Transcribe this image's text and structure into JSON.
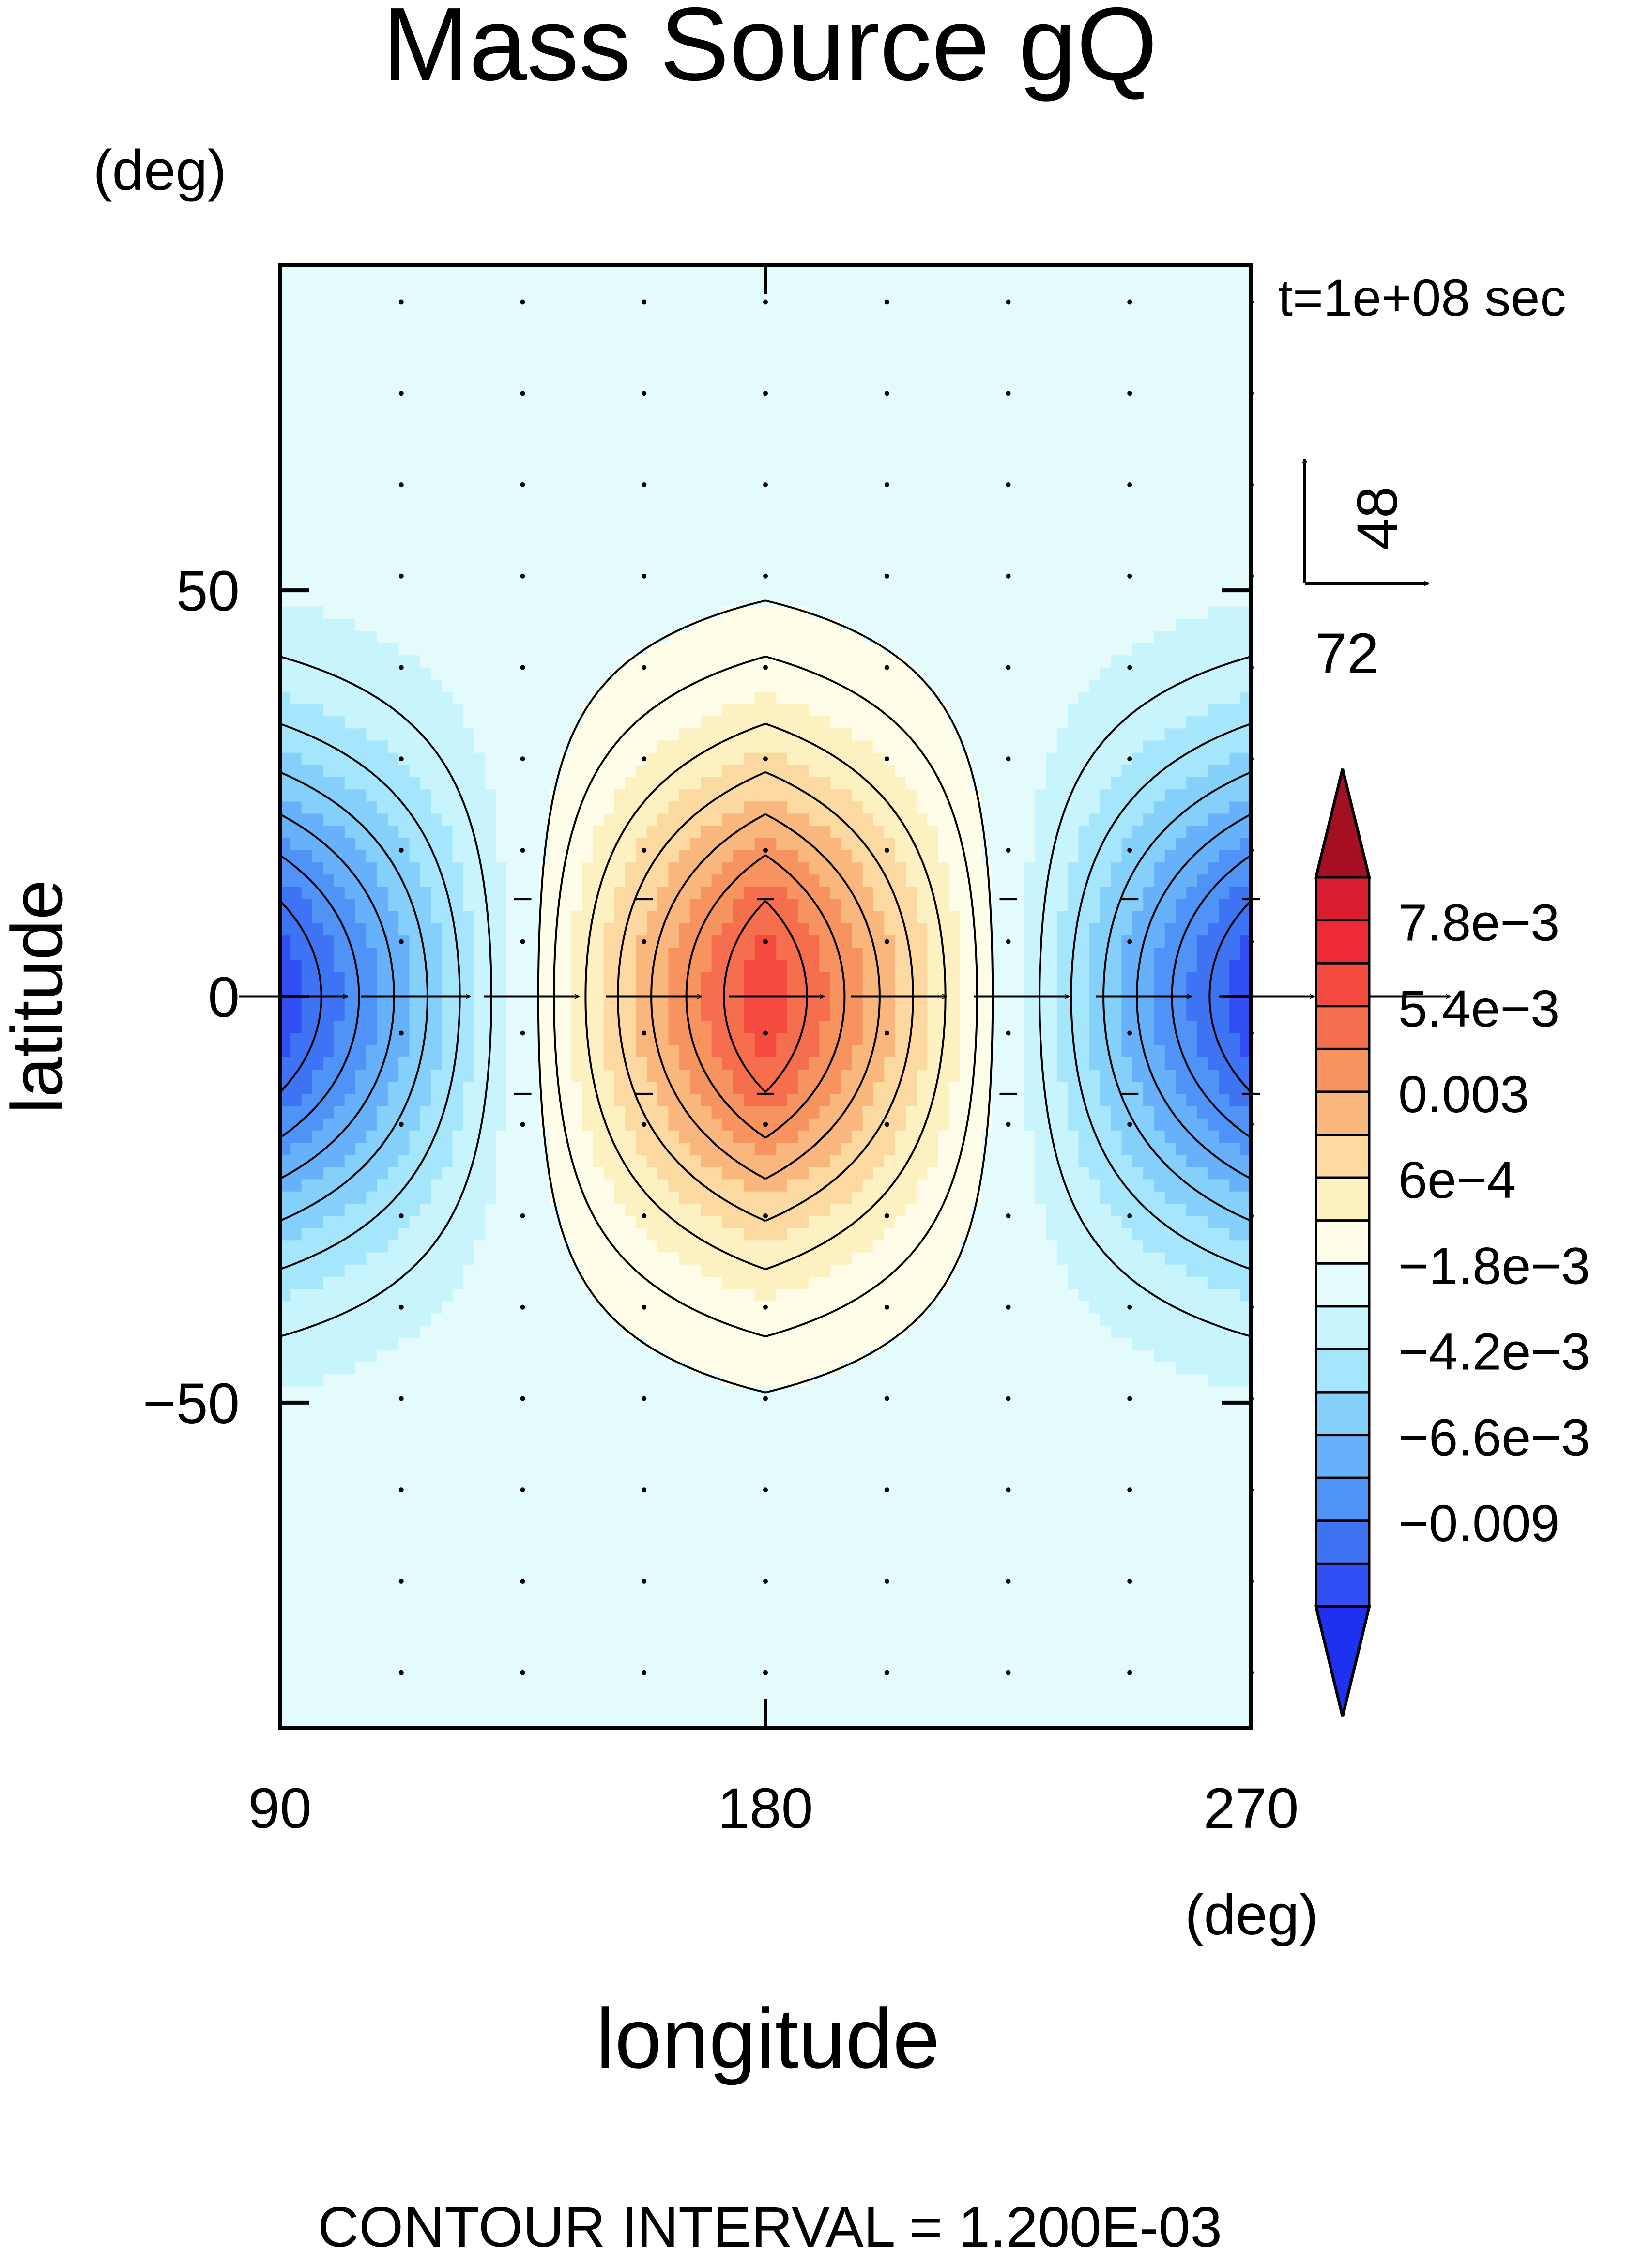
{
  "chart_data": {
    "type": "heatmap",
    "title": "Mass Source gQ",
    "xlabel": "longitude",
    "ylabel": "latitude",
    "x_unit": "(deg)",
    "y_unit": "(deg)",
    "time_label": "t=1e+08 sec",
    "footer": "CONTOUR INTERVAL = 1.200E-03",
    "xlim": [
      90,
      270
    ],
    "ylim": [
      -90,
      90
    ],
    "x_ticks": [
      90,
      180,
      270
    ],
    "x_tick_labels": [
      "90",
      "180",
      "270"
    ],
    "y_ticks": [
      50,
      0,
      -50
    ],
    "y_tick_labels": [
      "50",
      "0",
      "−50"
    ],
    "grid": false,
    "field": {
      "amplitude": 0.0084,
      "centers": [
        {
          "lon": 180,
          "lat": 0,
          "sign": 1
        },
        {
          "lon": 90,
          "lat": 0,
          "sign": -1
        },
        {
          "lon": 270,
          "lat": 0,
          "sign": -1
        }
      ],
      "lon_halfwidth": 90,
      "lat_halfwidth": 30
    },
    "contour_interval": 0.0012,
    "colorbar": {
      "levels_min": -0.0102,
      "levels_step": 0.0012,
      "colors": [
        "#1e30f0",
        "#2f4ff2",
        "#3e74f4",
        "#4f93f7",
        "#66b1fa",
        "#85cffb",
        "#a6e6fc",
        "#c7f4fd",
        "#e4fbfc",
        "#fffde8",
        "#fdf0c1",
        "#fbd9a0",
        "#f9b77e",
        "#f7935f",
        "#f56e4e",
        "#f44a40",
        "#ed2b36",
        "#d81d2e",
        "#a50f22"
      ],
      "tick_labels": [
        "7.8e−3",
        "5.4e−3",
        "0.003",
        "6e−4",
        "−1.8e−3",
        "−4.2e−3",
        "−6.6e−3",
        "−0.009"
      ],
      "tick_values": [
        0.0078,
        0.0054,
        0.003,
        0.0006,
        -0.0018,
        -0.0042,
        -0.0066,
        -0.009
      ]
    },
    "vectors": {
      "ref_u": 72,
      "ref_v": 48,
      "ref_u_label": "72",
      "ref_v_label": "48",
      "equator_u": [
        48,
        48,
        42,
        42,
        42,
        42,
        42,
        42,
        42,
        48
      ]
    }
  }
}
